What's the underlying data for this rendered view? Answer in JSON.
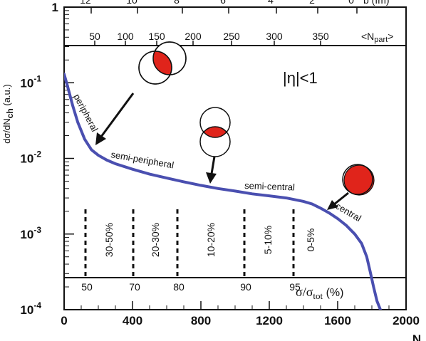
{
  "chart_data": {
    "type": "line",
    "y_scale": "log",
    "xlim": [
      0,
      2000
    ],
    "ylim": [
      0.0001,
      1
    ],
    "x_ticks": [
      "0",
      "400",
      "800",
      "1200",
      "1600",
      "2000"
    ],
    "y_ticks": [
      {
        "base": "1",
        "exp": ""
      },
      {
        "base": "10",
        "exp": "-1"
      },
      {
        "base": "10",
        "exp": "-2"
      },
      {
        "base": "10",
        "exp": "-3"
      },
      {
        "base": "10",
        "exp": "-4"
      }
    ],
    "ylabel": {
      "main": "dσ/dN",
      "sub": "ch",
      "unit": " (a.u.)"
    },
    "xlabel": "N",
    "top_axis": {
      "ticks": [
        "12",
        "10",
        "8",
        "6",
        "4",
        "2",
        "0"
      ],
      "label": "b (fm)"
    },
    "npart_axis": {
      "ticks": [
        "50",
        "100",
        "150",
        "200",
        "250",
        "300",
        "350"
      ],
      "label": "<N",
      "label_sub": "part",
      "label_end": ">"
    },
    "centrality_axis": {
      "ticks": [
        "50",
        "70",
        "80",
        "90",
        "95"
      ],
      "label_sigma": "σ/σ",
      "label_sub": "tot",
      "label_unit": " (%)"
    },
    "centrality_bins": [
      "30-50%",
      "20-30%",
      "10-20%",
      "5-10%",
      "0-5%"
    ],
    "eta_cut": "|η|<1",
    "curve_labels": [
      "peripheral",
      "semi-peripheral",
      "semi-central",
      "central"
    ],
    "series": [
      {
        "x": [
          0,
          20,
          50,
          80,
          120,
          160,
          200,
          250,
          300,
          400,
          500,
          600,
          700,
          800,
          900,
          1000,
          1100,
          1200,
          1300,
          1400,
          1450,
          1500,
          1550,
          1600,
          1650,
          1700,
          1740,
          1770,
          1790,
          1810,
          1830,
          1850
        ],
        "y": [
          0.13,
          0.09,
          0.05,
          0.03,
          0.018,
          0.013,
          0.011,
          0.0095,
          0.0085,
          0.0072,
          0.0062,
          0.0055,
          0.0049,
          0.0044,
          0.004,
          0.0037,
          0.0034,
          0.0032,
          0.003,
          0.0027,
          0.0025,
          0.0022,
          0.0019,
          0.0016,
          0.0013,
          0.001,
          0.00075,
          0.0005,
          0.00032,
          0.0002,
          0.00013,
          0.0001
        ],
        "color": "#4a4fb0"
      }
    ],
    "colors": {
      "curve": "#4a4fb0",
      "overlap": "#e0241b"
    }
  }
}
